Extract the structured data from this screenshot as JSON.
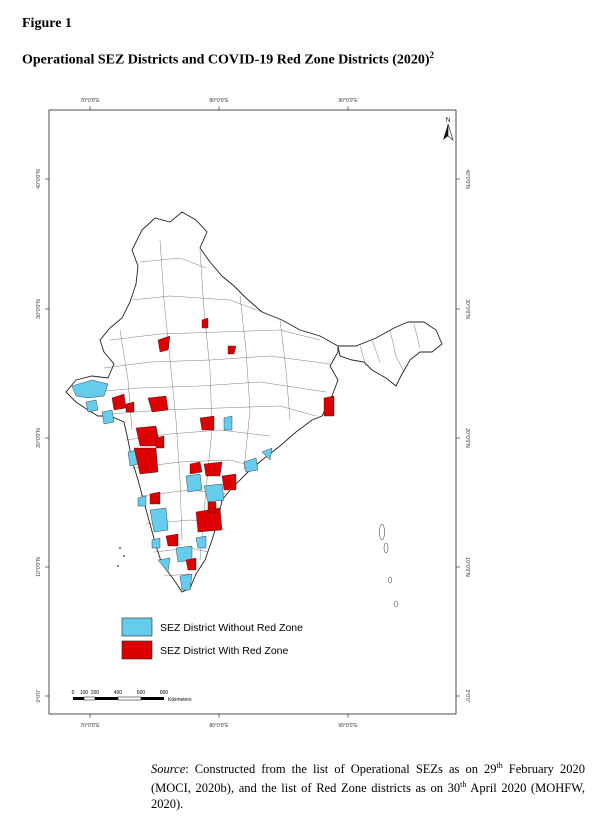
{
  "figure": {
    "label": "Figure 1",
    "title": "Operational SEZ Districts and COVID-19 Red Zone Districts (2020)",
    "title_footnote": "2"
  },
  "map": {
    "top_ticks": [
      "70°0'0\"E",
      "80°0'0\"E",
      "90°0'0\"E"
    ],
    "bottom_ticks": [
      "70°0'0\"E",
      "80°0'0\"E",
      "90°0'0\"E"
    ],
    "left_ticks": [
      "40°0'0\"N",
      "30°0'0\"N",
      "20°0'0\"N",
      "10°0'0\"N",
      "0°0'0\""
    ],
    "right_ticks": [
      "40°0'0\"N",
      "30°0'0\"N",
      "20°0'0\"N",
      "10°0'0\"N",
      "0°0'0\""
    ],
    "north_arrow": "N",
    "legend": [
      {
        "label": "SEZ District Without Red Zone",
        "color": "#66ccee"
      },
      {
        "label": "SEZ District With Red Zone",
        "color": "#dd0000"
      }
    ],
    "scale_labels": [
      "0",
      "100",
      "200",
      "400",
      "600",
      "800"
    ],
    "scale_unit": "Kilometers",
    "colors": {
      "outline": "#222222",
      "land": "#ffffff",
      "sez": "#66ccee",
      "red": "#dd0000"
    }
  },
  "source": {
    "label": "Source",
    "text_a": ": Constructed from the list of Operational SEZs as on 29",
    "sup_a": "th",
    "text_b": " February 2020 (MOCI, 2020b), and the list of Red Zone districts as on 30",
    "sup_b": "th",
    "text_c": " April 2020 (MOHFW, 2020)."
  }
}
